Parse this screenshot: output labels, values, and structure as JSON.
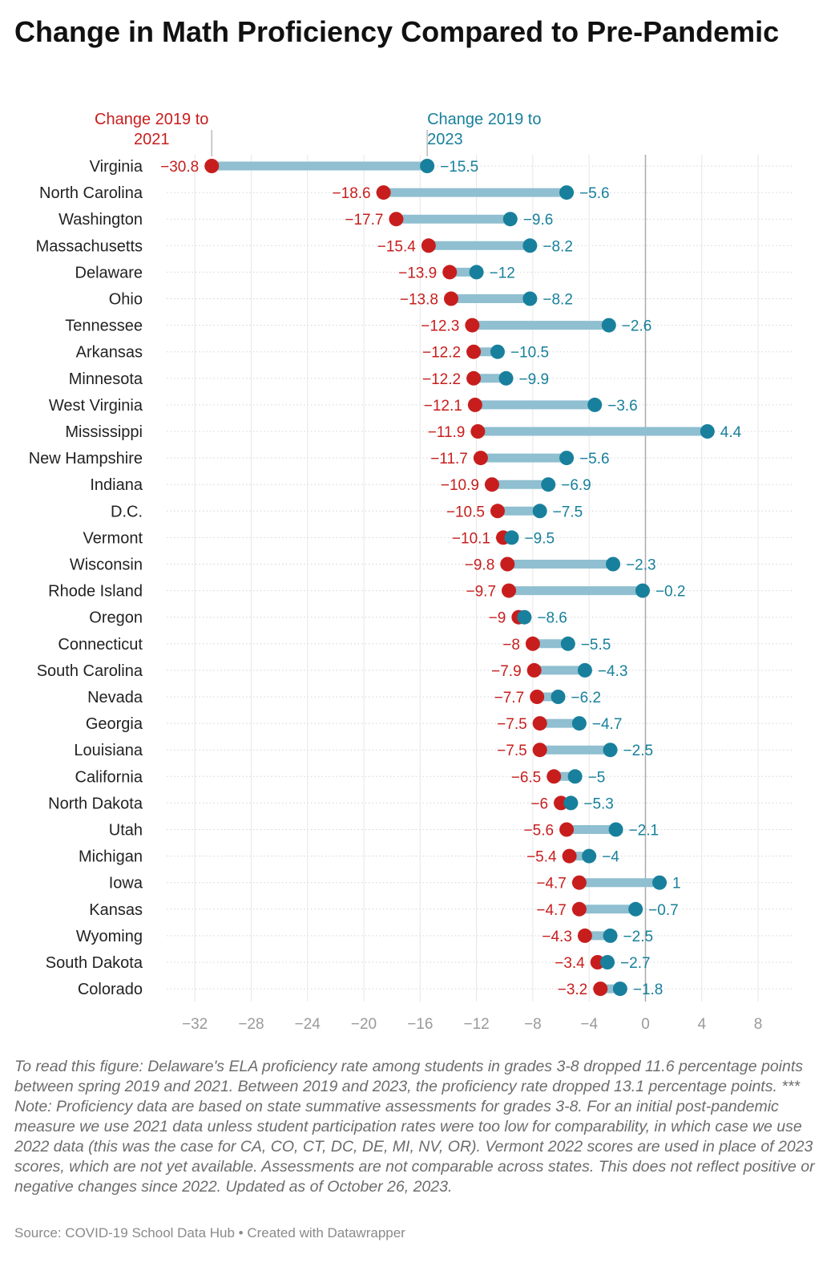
{
  "title": "Change in Math Proficiency Compared to Pre-Pandemic",
  "note": "To read this figure: Delaware's ELA proficiency rate among students in grades 3-8 dropped 11.6 percentage points between spring 2019 and 2021. Between 2019 and 2023, the proficiency rate dropped 13.1 percentage points. *** Note: Proficiency data are based on state summative assessments for grades 3-8. For an initial post-pandemic measure we use 2021 data unless student participation rates were too low for comparability, in which case we use 2022 data (this was the case for CA, CO, CT, DC, DE, MI, NV, OR). Vermont 2022 scores are used in place of 2023 scores, which are not yet available. Assessments are not comparable across states. This does not reflect positive or negative changes since 2022. Updated as of October 26, 2023.",
  "source": "Source: COVID-19 School Data Hub • Created with Datawrapper",
  "colors": {
    "series_2021": "#c71e1d",
    "series_2023": "#18809c",
    "range_bar": "#8fbfd0"
  },
  "chart_data": {
    "type": "dot-range",
    "legend_placement": "top, annotation labels over first row",
    "xlim": [
      -34,
      10.5
    ],
    "x_ticks": [
      -32,
      -28,
      -24,
      -20,
      -16,
      -12,
      -8,
      -4,
      0,
      4,
      8
    ],
    "x_tick_labels": [
      "−32",
      "−28",
      "−24",
      "−20",
      "−16",
      "−12",
      "−8",
      "−4",
      "0",
      "4",
      "8"
    ],
    "grid": true,
    "series": [
      {
        "key": "y2021",
        "name": [
          "Change 2019 to",
          "2021"
        ]
      },
      {
        "key": "y2023",
        "name": [
          "Change 2019 to",
          "2023"
        ]
      }
    ],
    "rows": [
      {
        "label": "Virginia",
        "y2021": -30.8,
        "y2023": -15.5,
        "l2021": "−30.8",
        "l2023": "−15.5"
      },
      {
        "label": "North Carolina",
        "y2021": -18.6,
        "y2023": -5.6,
        "l2021": "−18.6",
        "l2023": "−5.6"
      },
      {
        "label": "Washington",
        "y2021": -17.7,
        "y2023": -9.6,
        "l2021": "−17.7",
        "l2023": "−9.6"
      },
      {
        "label": "Massachusetts",
        "y2021": -15.4,
        "y2023": -8.2,
        "l2021": "−15.4",
        "l2023": "−8.2"
      },
      {
        "label": "Delaware",
        "y2021": -13.9,
        "y2023": -12,
        "l2021": "−13.9",
        "l2023": "−12"
      },
      {
        "label": "Ohio",
        "y2021": -13.8,
        "y2023": -8.2,
        "l2021": "−13.8",
        "l2023": "−8.2"
      },
      {
        "label": "Tennessee",
        "y2021": -12.3,
        "y2023": -2.6,
        "l2021": "−12.3",
        "l2023": "−2.6"
      },
      {
        "label": "Arkansas",
        "y2021": -12.2,
        "y2023": -10.5,
        "l2021": "−12.2",
        "l2023": "−10.5"
      },
      {
        "label": "Minnesota",
        "y2021": -12.2,
        "y2023": -9.9,
        "l2021": "−12.2",
        "l2023": "−9.9"
      },
      {
        "label": "West Virginia",
        "y2021": -12.1,
        "y2023": -3.6,
        "l2021": "−12.1",
        "l2023": "−3.6"
      },
      {
        "label": "Mississippi",
        "y2021": -11.9,
        "y2023": 4.4,
        "l2021": "−11.9",
        "l2023": "4.4"
      },
      {
        "label": "New Hampshire",
        "y2021": -11.7,
        "y2023": -5.6,
        "l2021": "−11.7",
        "l2023": "−5.6"
      },
      {
        "label": "Indiana",
        "y2021": -10.9,
        "y2023": -6.9,
        "l2021": "−10.9",
        "l2023": "−6.9"
      },
      {
        "label": "D.C.",
        "y2021": -10.5,
        "y2023": -7.5,
        "l2021": "−10.5",
        "l2023": "−7.5"
      },
      {
        "label": "Vermont",
        "y2021": -10.1,
        "y2023": -9.5,
        "l2021": "−10.1",
        "l2023": "−9.5"
      },
      {
        "label": "Wisconsin",
        "y2021": -9.8,
        "y2023": -2.3,
        "l2021": "−9.8",
        "l2023": "−2.3"
      },
      {
        "label": "Rhode Island",
        "y2021": -9.7,
        "y2023": -0.2,
        "l2021": "−9.7",
        "l2023": "−0.2"
      },
      {
        "label": "Oregon",
        "y2021": -9,
        "y2023": -8.6,
        "l2021": "−9",
        "l2023": "−8.6"
      },
      {
        "label": "Connecticut",
        "y2021": -8,
        "y2023": -5.5,
        "l2021": "−8",
        "l2023": "−5.5"
      },
      {
        "label": "South Carolina",
        "y2021": -7.9,
        "y2023": -4.3,
        "l2021": "−7.9",
        "l2023": "−4.3"
      },
      {
        "label": "Nevada",
        "y2021": -7.7,
        "y2023": -6.2,
        "l2021": "−7.7",
        "l2023": "−6.2"
      },
      {
        "label": "Georgia",
        "y2021": -7.5,
        "y2023": -4.7,
        "l2021": "−7.5",
        "l2023": "−4.7"
      },
      {
        "label": "Louisiana",
        "y2021": -7.5,
        "y2023": -2.5,
        "l2021": "−7.5",
        "l2023": "−2.5"
      },
      {
        "label": "California",
        "y2021": -6.5,
        "y2023": -5,
        "l2021": "−6.5",
        "l2023": "−5"
      },
      {
        "label": "North Dakota",
        "y2021": -6,
        "y2023": -5.3,
        "l2021": "−6",
        "l2023": "−5.3"
      },
      {
        "label": "Utah",
        "y2021": -5.6,
        "y2023": -2.1,
        "l2021": "−5.6",
        "l2023": "−2.1"
      },
      {
        "label": "Michigan",
        "y2021": -5.4,
        "y2023": -4,
        "l2021": "−5.4",
        "l2023": "−4"
      },
      {
        "label": "Iowa",
        "y2021": -4.7,
        "y2023": 1,
        "l2021": "−4.7",
        "l2023": "1"
      },
      {
        "label": "Kansas",
        "y2021": -4.7,
        "y2023": -0.7,
        "l2021": "−4.7",
        "l2023": "−0.7"
      },
      {
        "label": "Wyoming",
        "y2021": -4.3,
        "y2023": -2.5,
        "l2021": "−4.3",
        "l2023": "−2.5"
      },
      {
        "label": "South Dakota",
        "y2021": -3.4,
        "y2023": -2.7,
        "l2021": "−3.4",
        "l2023": "−2.7"
      },
      {
        "label": "Colorado",
        "y2021": -3.2,
        "y2023": -1.8,
        "l2021": "−3.2",
        "l2023": "−1.8"
      }
    ]
  }
}
